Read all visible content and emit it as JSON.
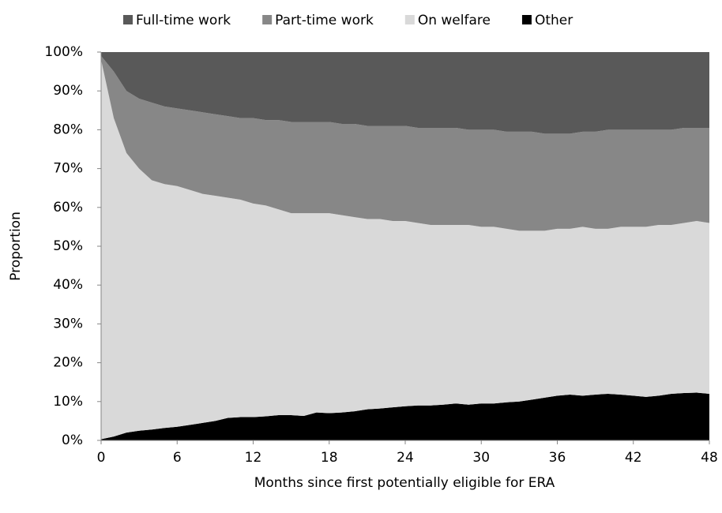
{
  "chart_data": {
    "type": "stacked_area",
    "x_label": "Months since first potentially eligible for ERA",
    "y_label": "Proportion",
    "x": [
      0,
      1,
      2,
      3,
      4,
      5,
      6,
      7,
      8,
      9,
      10,
      11,
      12,
      13,
      14,
      15,
      16,
      17,
      18,
      19,
      20,
      21,
      22,
      23,
      24,
      25,
      26,
      27,
      28,
      29,
      30,
      31,
      32,
      33,
      34,
      35,
      36,
      37,
      38,
      39,
      40,
      41,
      42,
      43,
      44,
      45,
      46,
      47,
      48
    ],
    "series": [
      {
        "name": "Full-time work",
        "color": "#595959",
        "values": [
          1,
          5,
          10,
          12,
          13,
          14,
          14.5,
          15,
          15.5,
          16,
          16.5,
          17,
          17,
          17.5,
          17.5,
          18,
          18,
          18,
          18,
          18.5,
          18.5,
          19,
          19,
          19,
          19,
          19.5,
          19.5,
          19.5,
          19.5,
          20,
          20,
          20,
          20.5,
          20.5,
          20.5,
          21,
          21,
          21,
          20.5,
          20.5,
          20,
          20,
          20,
          20,
          20,
          20,
          19.5,
          19.5,
          19.5
        ]
      },
      {
        "name": "Part-time work",
        "color": "#878787",
        "values": [
          1,
          12,
          16,
          18,
          20,
          20,
          20,
          20.5,
          21,
          21,
          21,
          21,
          22,
          22,
          23,
          23.5,
          23.5,
          23.5,
          23.5,
          23.5,
          24,
          24,
          24,
          24.5,
          24.5,
          24.5,
          25,
          25,
          25,
          24.5,
          25,
          25,
          25,
          25.5,
          25.5,
          25,
          24.5,
          24.5,
          24.5,
          25,
          25.5,
          25,
          25,
          25,
          24.5,
          24.5,
          24.5,
          24,
          24.5
        ]
      },
      {
        "name": "On welfare",
        "color": "#d9d9d9",
        "values": [
          97.7,
          82,
          72,
          67.5,
          64.2,
          62.8,
          62,
          60.5,
          59,
          58,
          56.7,
          56,
          55,
          54.3,
          53,
          52,
          52.2,
          51.3,
          51.5,
          50.8,
          50,
          49,
          48.8,
          48,
          47.7,
          47,
          46.5,
          46.3,
          46,
          46.3,
          45.5,
          45.5,
          44.7,
          44,
          43.5,
          43,
          43,
          42.7,
          43.5,
          42.7,
          42.5,
          43.2,
          43.5,
          43.8,
          44,
          43.5,
          43.8,
          44.2,
          44
        ]
      },
      {
        "name": "Other",
        "color": "#000000",
        "values": [
          0.3,
          1,
          2,
          2.5,
          2.8,
          3.2,
          3.5,
          4,
          4.5,
          5,
          5.8,
          6,
          6,
          6.2,
          6.5,
          6.5,
          6.3,
          7.2,
          7,
          7.2,
          7.5,
          8,
          8.2,
          8.5,
          8.8,
          9,
          9,
          9.2,
          9.5,
          9.2,
          9.5,
          9.5,
          9.8,
          10,
          10.5,
          11,
          11.5,
          11.8,
          11.5,
          11.8,
          12,
          11.8,
          11.5,
          11.2,
          11.5,
          12,
          12.2,
          12.3,
          12
        ]
      }
    ],
    "xlim": [
      0,
      48
    ],
    "xticks": [
      0,
      6,
      12,
      18,
      24,
      30,
      36,
      42,
      48
    ],
    "ylim": [
      0,
      100
    ],
    "yticks": [
      {
        "value": 0,
        "label": "0%"
      },
      {
        "value": 10,
        "label": "10%"
      },
      {
        "value": 20,
        "label": "20%"
      },
      {
        "value": 30,
        "label": "30%"
      },
      {
        "value": 40,
        "label": "40%"
      },
      {
        "value": 50,
        "label": "50%"
      },
      {
        "value": 60,
        "label": "60%"
      },
      {
        "value": 70,
        "label": "70%"
      },
      {
        "value": 80,
        "label": "80%"
      },
      {
        "value": 90,
        "label": "90%"
      },
      {
        "value": 100,
        "label": "100%"
      }
    ],
    "legend": "top"
  }
}
